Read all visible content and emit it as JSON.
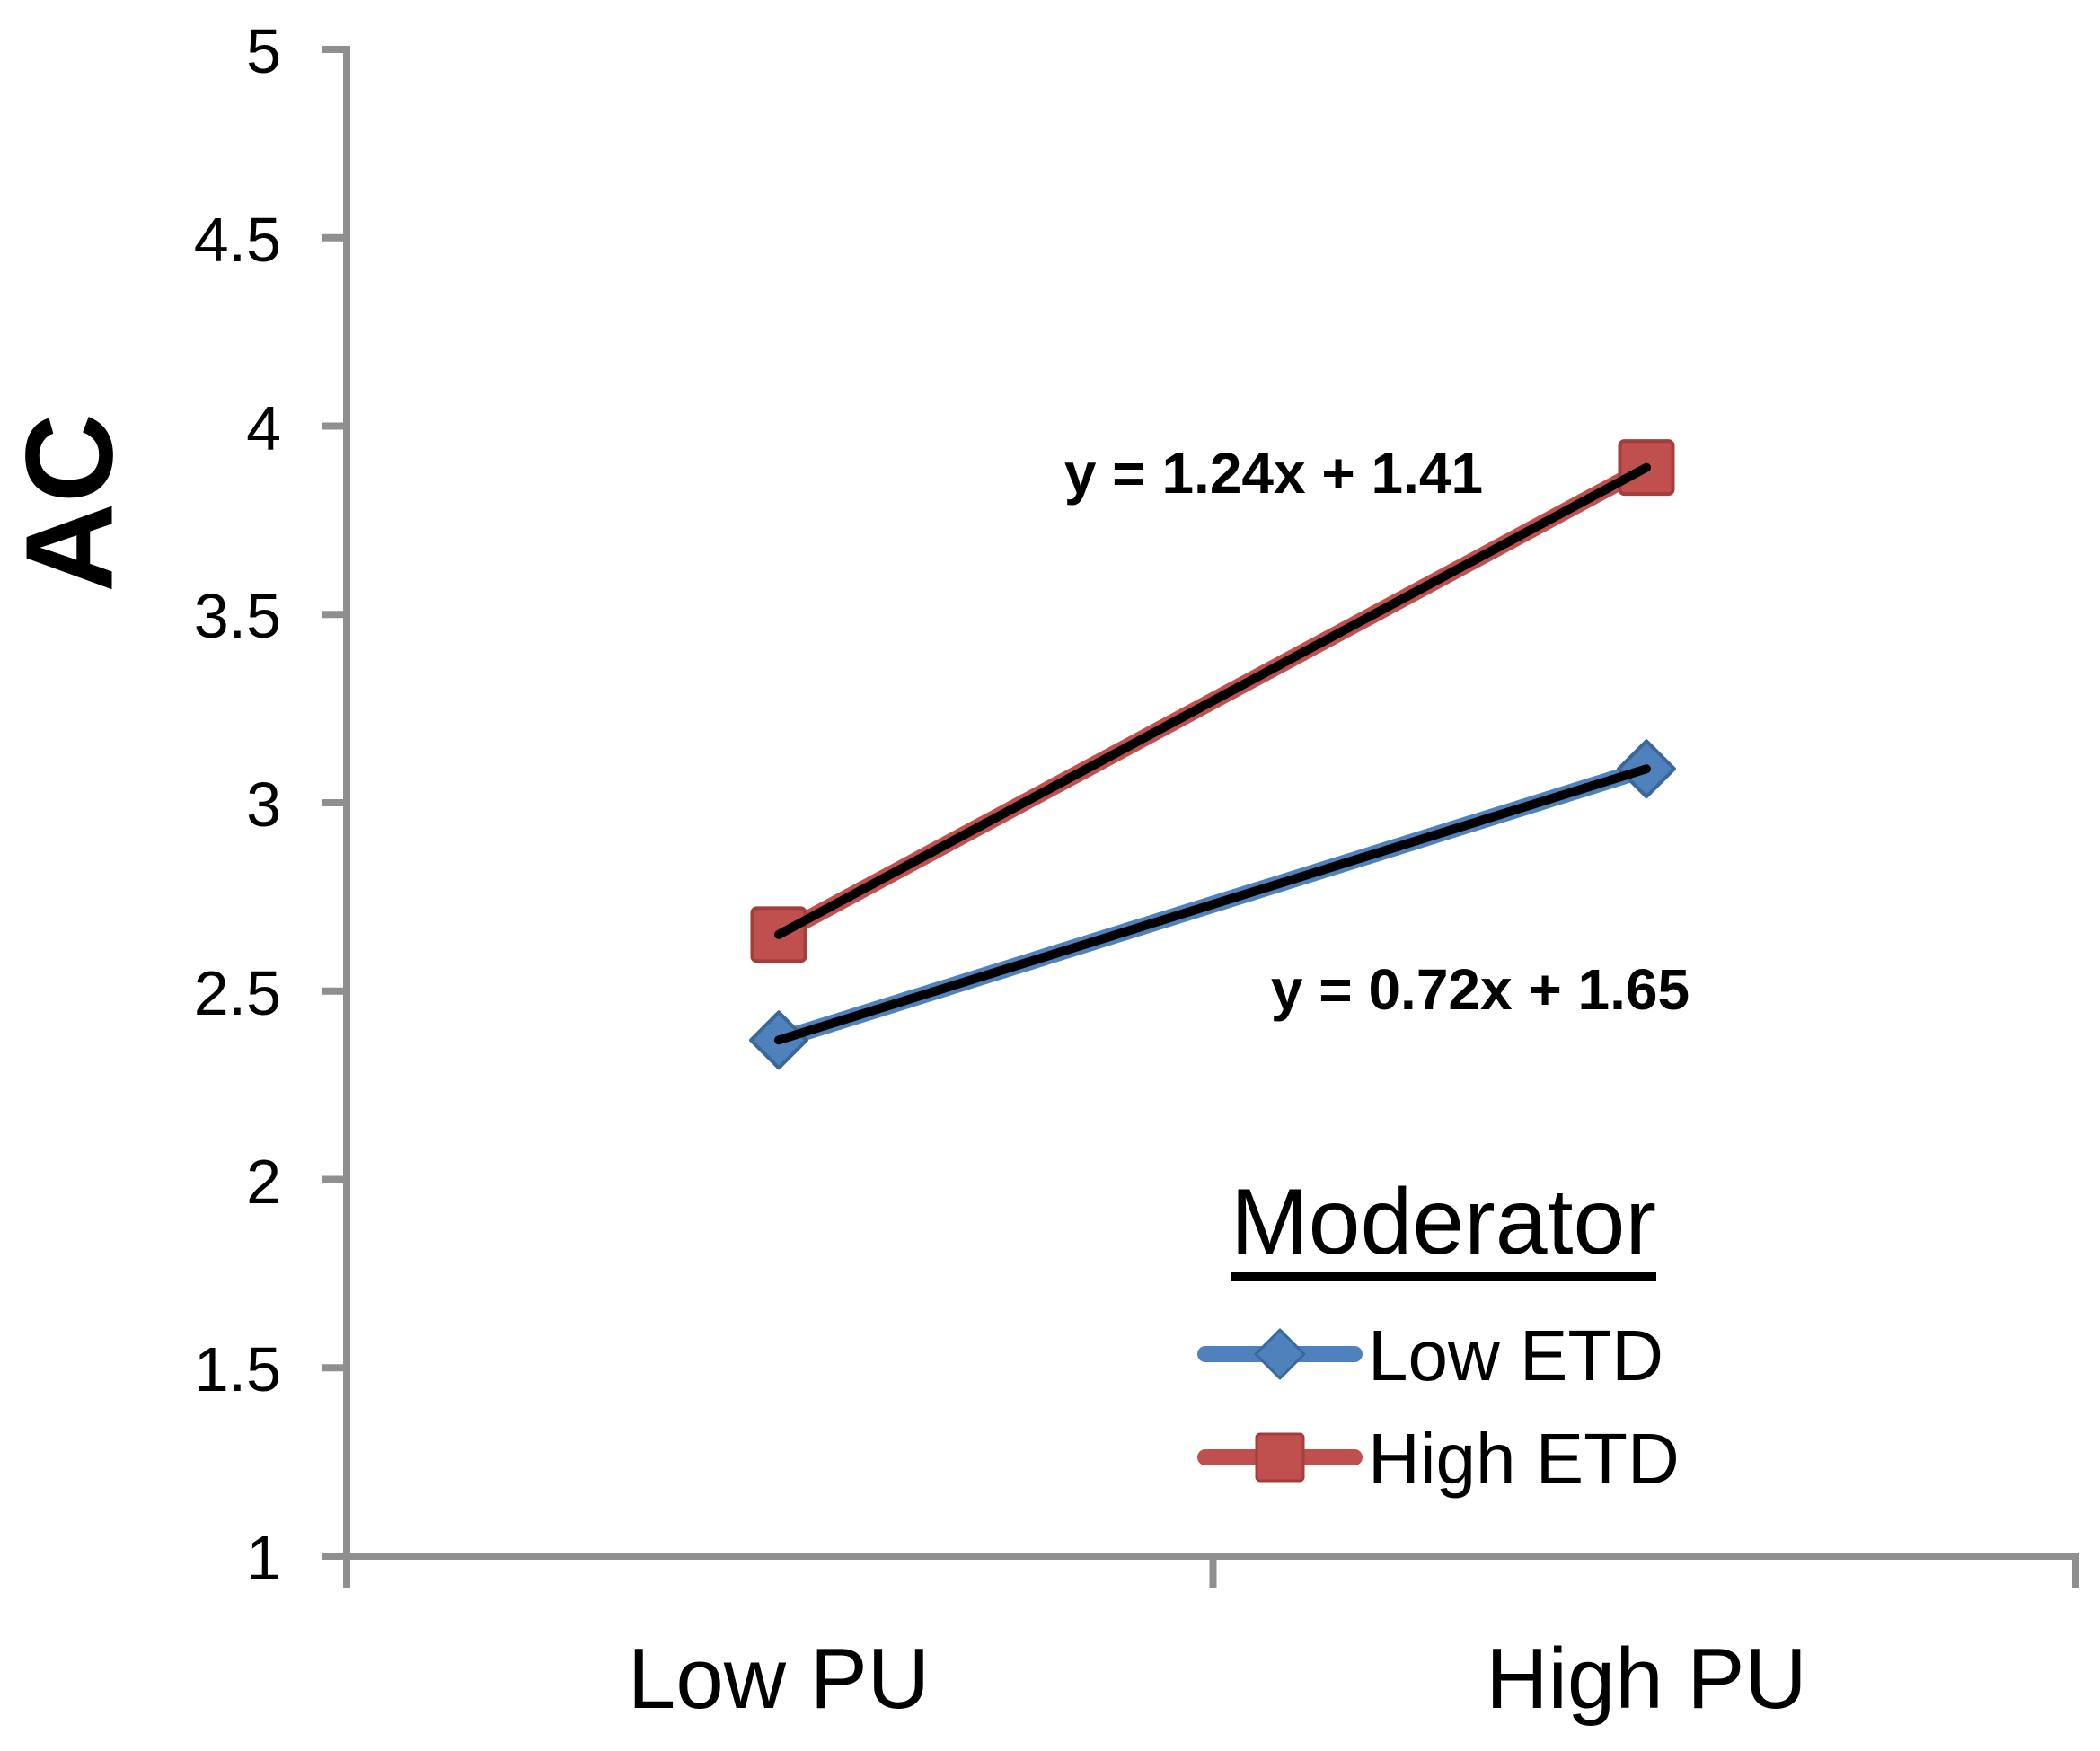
{
  "chart_data": {
    "type": "line",
    "title": "",
    "ylabel": "AC",
    "xlabel": "",
    "categories": [
      "Low PU",
      "High PU"
    ],
    "series": [
      {
        "name": "Low ETD",
        "marker": "diamond",
        "color": "#4F81BD",
        "edge_color": "#3A689B",
        "values": [
          2.37,
          3.09
        ],
        "trendline": {
          "equation": "y = 0.72x + 1.65",
          "color": "#000000"
        }
      },
      {
        "name": "High ETD",
        "marker": "square",
        "color": "#C0504D",
        "edge_color": "#A23E3B",
        "values": [
          2.65,
          3.89
        ],
        "trendline": {
          "equation": "y = 1.24x + 1.41",
          "color": "#000000"
        }
      }
    ],
    "y_axis": {
      "min": 1,
      "max": 5,
      "step": 0.5,
      "tick_labels": [
        "1",
        "1.5",
        "2",
        "2.5",
        "3",
        "3.5",
        "4",
        "4.5",
        "5"
      ]
    },
    "x_axis": {
      "tick_labels": [
        "Low PU",
        "High PU"
      ]
    },
    "legend": {
      "title": "Moderator",
      "items": [
        "Low ETD",
        "High ETD"
      ],
      "position": "bottom-right"
    },
    "axis_color": "#8F8F8F",
    "grid": false
  }
}
